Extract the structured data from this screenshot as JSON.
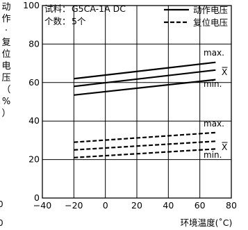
{
  "chart_data": {
    "type": "line",
    "ylabel": "动作·复位电压（%）",
    "xlabel": "环境温度(˚C)",
    "xlim": [
      -40,
      80
    ],
    "ylim": [
      0,
      100
    ],
    "x_ticks": [
      "−40",
      "−20",
      "0",
      "20",
      "40",
      "60",
      "80"
    ],
    "y_ticks": [
      "0",
      "20",
      "40",
      "60",
      "80",
      "100"
    ],
    "grid": true,
    "info": {
      "sample_label": "试料：",
      "sample_value": "G5CA-1A DC",
      "count_label": "个数：",
      "count_value": "5个"
    },
    "legend": {
      "position": "top-right",
      "items": [
        {
          "label": "动作电压",
          "style": "solid"
        },
        {
          "label": "复位电压",
          "style": "dashed"
        }
      ]
    },
    "series": [
      {
        "group": "动作电压",
        "stat": "max.",
        "style": "solid",
        "x": [
          -20,
          70
        ],
        "y": [
          62,
          70.5
        ]
      },
      {
        "group": "动作电压",
        "stat": "X̄",
        "style": "solid",
        "x": [
          -20,
          70
        ],
        "y": [
          58,
          66.5
        ]
      },
      {
        "group": "动作电压",
        "stat": "min.",
        "style": "solid",
        "x": [
          -20,
          70
        ],
        "y": [
          53.5,
          61.5
        ]
      },
      {
        "group": "复位电压",
        "stat": "max.",
        "style": "dashed",
        "x": [
          -20,
          70
        ],
        "y": [
          29,
          34
        ]
      },
      {
        "group": "复位电压",
        "stat": "X̄",
        "style": "dashed",
        "x": [
          -20,
          70
        ],
        "y": [
          25,
          29.5
        ]
      },
      {
        "group": "复位电压",
        "stat": "min.",
        "style": "dashed",
        "x": [
          -20,
          70
        ],
        "y": [
          21,
          25.5
        ]
      }
    ],
    "annotations": [
      "max.",
      "X",
      "min.",
      "max.",
      "X",
      "min."
    ],
    "edge_fragments": [
      "0",
      "0"
    ]
  }
}
